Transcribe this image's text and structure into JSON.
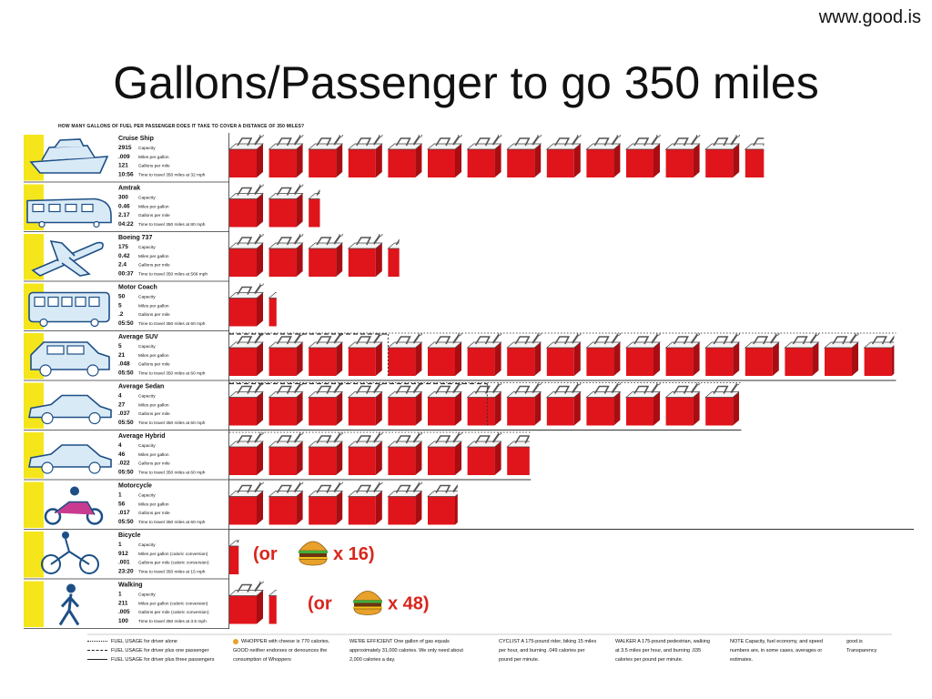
{
  "watermark": "www.good.is",
  "title": "Gallons/Passenger to go 350 miles",
  "subtitle": "HOW MANY GALLONS OF FUEL PER PASSENGER DOES IT TAKE TO COVER A DISTANCE OF 350 MILES?",
  "colors": {
    "can": "#e0141b",
    "can_dark": "#a80d12",
    "photo_bg": "#f5e61c",
    "or_text": "#d9261c"
  },
  "stat_labels": [
    "Capacity",
    "Miles per gallon",
    "Gallons per mile"
  ],
  "chart_data": {
    "type": "bar",
    "title": "Gallons/Passenger to go 350 miles",
    "categories": [
      "Cruise Ship",
      "Amtrak",
      "Boeing 737",
      "Motor Coach",
      "Average SUV",
      "Average Sedan",
      "Average Hybrid",
      "Motorcycle",
      "Bicycle",
      "Walking"
    ],
    "values": [
      13.5,
      2.3,
      4.3,
      1.2,
      16.8,
      12.9,
      7.6,
      5.8,
      0.25,
      1.2
    ],
    "rows": [
      {
        "name": "Cruise Ship",
        "capacity": "2915",
        "mpg": ".009",
        "gpm": "121",
        "time": "10:56",
        "time_label": "Time to travel 350 miles at 32 mph",
        "cans": 13.5,
        "cans_dashed": 0,
        "cans_dotted": 0
      },
      {
        "name": "Amtrak",
        "capacity": "300",
        "mpg": "0.46",
        "gpm": "2.17",
        "time": "04:22",
        "time_label": "Time to travel 350 miles at 80 mph",
        "cans": 2.3,
        "cans_dashed": 0,
        "cans_dotted": 0
      },
      {
        "name": "Boeing 737",
        "capacity": "175",
        "mpg": "0.42",
        "gpm": "2.4",
        "time": "00:37",
        "time_label": "Time to travel 350 miles at 566 mph",
        "cans": 4.3,
        "cans_dashed": 0,
        "cans_dotted": 0
      },
      {
        "name": "Motor Coach",
        "capacity": "50",
        "mpg": "5",
        "gpm": ".2",
        "time": "05:50",
        "time_label": "Time to travel 350 miles at 60 mph",
        "cans": 1.2,
        "cans_dashed": 0,
        "cans_dotted": 0
      },
      {
        "name": "Average SUV",
        "capacity": "5",
        "mpg": "21",
        "gpm": ".048",
        "time": "05:50",
        "time_label": "Time to travel 350 miles at 60 mph",
        "cans": 4,
        "cans_dashed": 4,
        "cans_dotted": 16.8
      },
      {
        "name": "Average Sedan",
        "capacity": "4",
        "mpg": "27",
        "gpm": ".037",
        "time": "05:50",
        "time_label": "Time to travel 350 miles at 60 mph",
        "cans": 4,
        "cans_dashed": 6.5,
        "cans_dotted": 12.9
      },
      {
        "name": "Average Hybrid",
        "capacity": "4",
        "mpg": "46",
        "gpm": ".022",
        "time": "05:50",
        "time_label": "Time to travel 350 miles at 60 mph",
        "cans": 4,
        "cans_dashed": 0,
        "cans_dotted": 7.6
      },
      {
        "name": "Motorcycle",
        "capacity": "1",
        "mpg": "56",
        "gpm": ".017",
        "time": "05:50",
        "time_label": "Time to travel 350 miles at 60 mph",
        "cans": 5.8,
        "cans_dashed": 0,
        "cans_dotted": 0
      },
      {
        "name": "Bicycle",
        "capacity": "1",
        "mpg": "912",
        "mpg_label": "Miles per gallon (caloric conversion)",
        "gpm": ".001",
        "gpm_label": "Gallons per mile (caloric conversion)",
        "time": "23:20",
        "time_label": "Time to travel 350 miles at 15 mph",
        "cans": 0.25,
        "cans_dashed": 0,
        "cans_dotted": 0,
        "or_text": "(or",
        "times_text": "x 16)"
      },
      {
        "name": "Walking",
        "capacity": "1",
        "mpg": "211",
        "mpg_label": "Miles per gallon (caloric conversion)",
        "gpm": ".005",
        "gpm_label": "Gallons per mile (caloric conversion)",
        "time": "100",
        "time_label": "Time to travel 350 miles at 3.5 mph",
        "cans": 1.2,
        "cans_dashed": 0,
        "cans_dotted": 0,
        "or_text": "(or",
        "times_text": "x 48)"
      }
    ]
  },
  "footer": {
    "legend": [
      {
        "style": "dotted",
        "label": "FUEL USAGE for driver alone"
      },
      {
        "style": "dashed",
        "label": "FUEL USAGE for driver plus one passenger"
      },
      {
        "style": "solid",
        "label": "FUEL USAGE for driver plus three passengers"
      }
    ],
    "whopper": "WHOPPER with cheese is 770 calories. GOOD neither endorses or denounces the consumption of Whoppers",
    "efficient": "WE'RE EFFICIENT One gallon of gas equals approximately 31,000 calories. We only need about 2,000 calories a day.",
    "cyclist": "CYCLIST A 175-pound rider, biking 15 miles per hour, and burning .049 calories per pound per minute.",
    "walker": "WALKER A 175-pound pedestrian, walking at 3.5 miles per hour, and burning .035 calories per pound per minute.",
    "note": "NOTE Capacity, fuel economy, and speed numbers are, in some cases, averages or estimates.",
    "credit": "good.is Transparency"
  }
}
